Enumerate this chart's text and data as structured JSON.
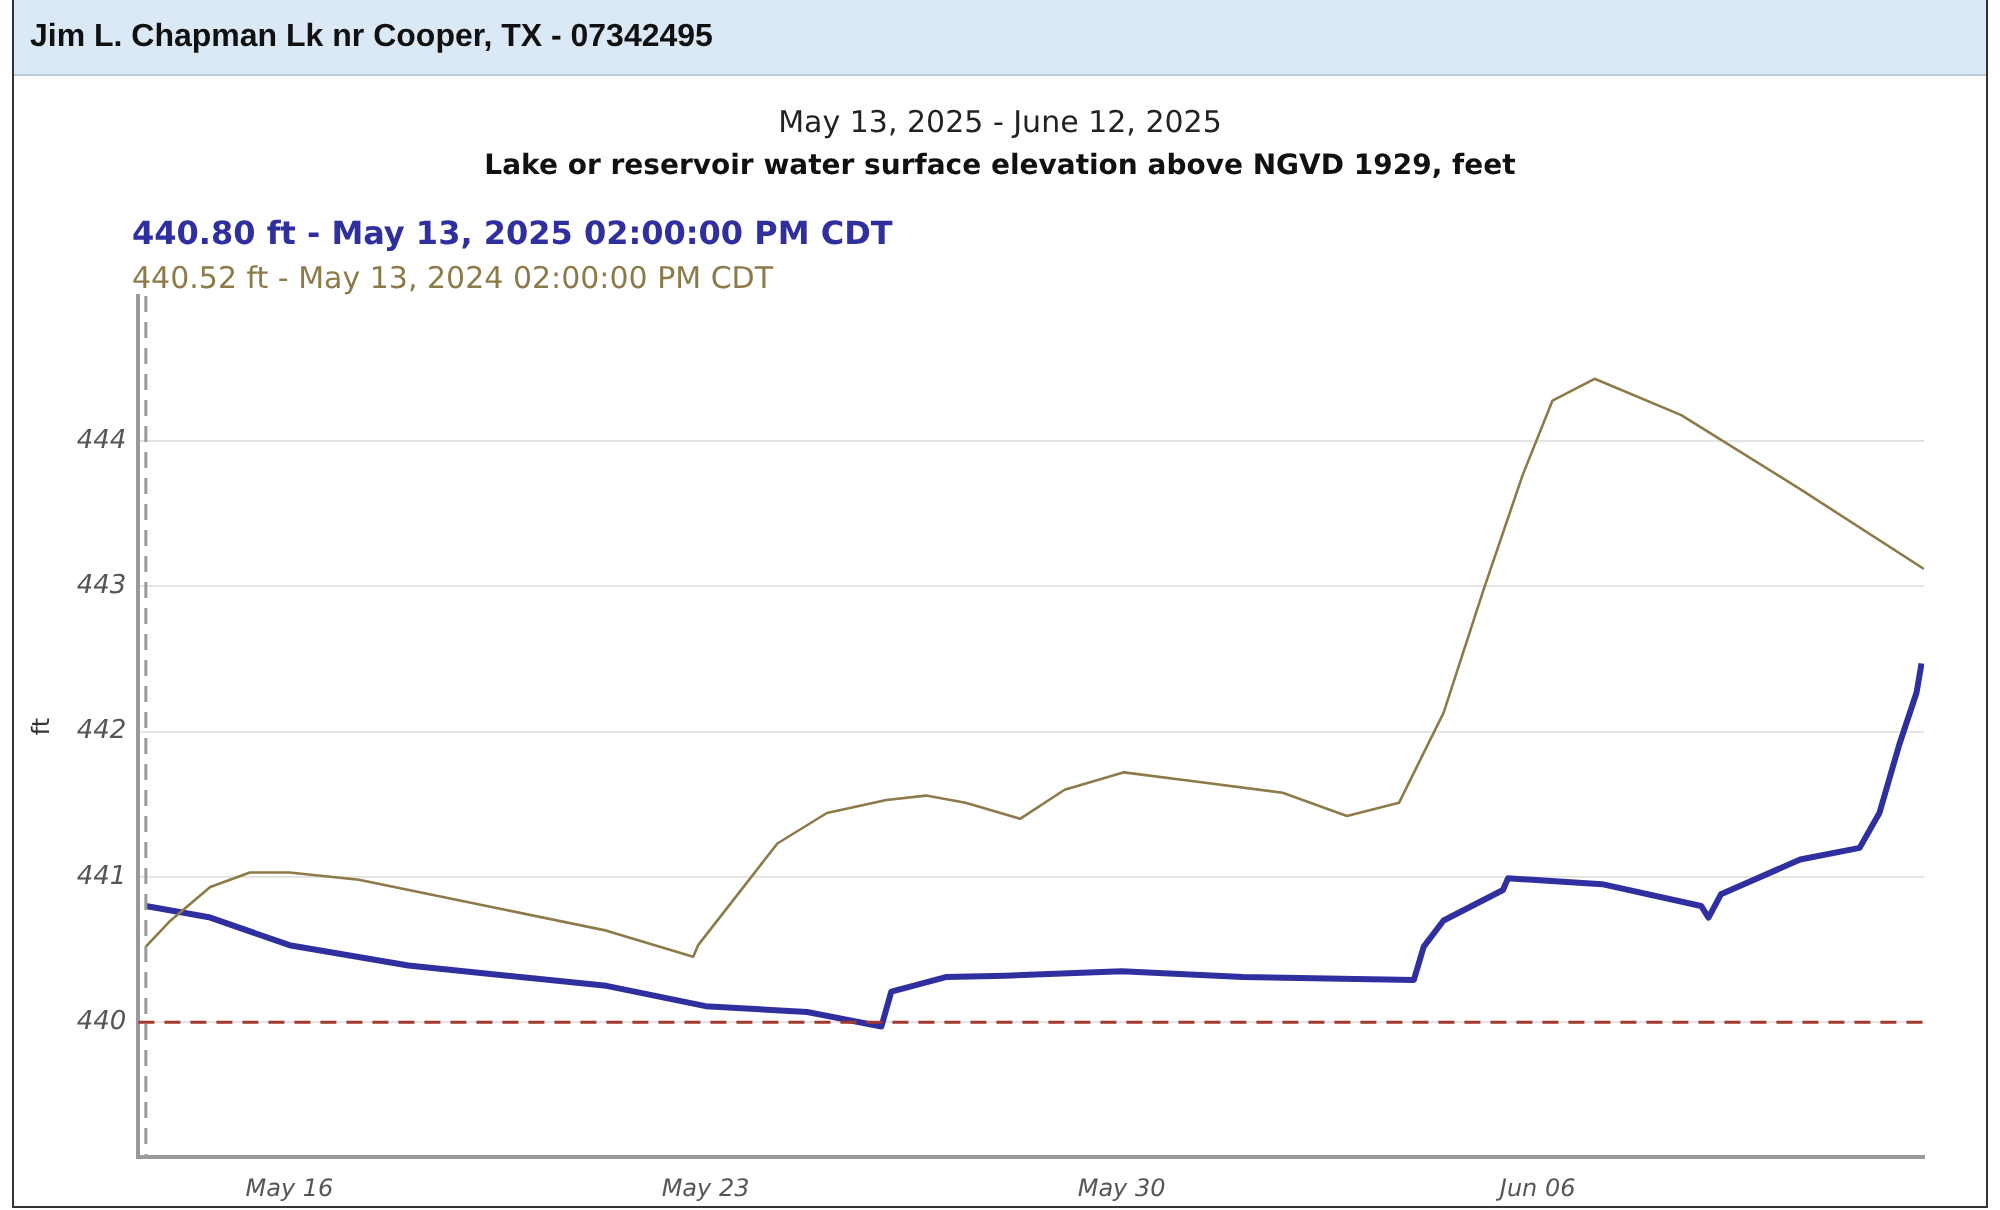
{
  "chart_data": {
    "type": "line",
    "title": "Jim L. Chapman Lk nr Cooper, TX - 07342495",
    "subtitle": "May 13, 2025 - June 12, 2025",
    "xlabel": null,
    "ylabel": "ft",
    "annotations": [
      "Lake or reservoir water surface elevation above NGVD 1929, feet"
    ],
    "xlim": [
      "2025-05-13T11:00",
      "2025-06-12T12:00"
    ],
    "xticks": [
      {
        "value": "2025-05-16",
        "label": "May 16"
      },
      {
        "value": "2025-05-23",
        "label": "May 23"
      },
      {
        "value": "2025-05-30",
        "label": "May 30"
      },
      {
        "value": "2025-06-06",
        "label": "Jun 06"
      }
    ],
    "ylim": [
      439.07,
      445
    ],
    "yticks": [
      440,
      441,
      442,
      443,
      444
    ],
    "grid": "y",
    "legend": "top left",
    "marker": "none",
    "line_style": "solid",
    "ref_lines": [
      {
        "axis": "y",
        "value": 440,
        "label": null,
        "color": "#a0392e",
        "line_style": "dashed"
      },
      {
        "axis": "x",
        "value": "2025-05-13T14:00",
        "label": null,
        "color": "#9a9a9a",
        "line_style": "dashed"
      }
    ],
    "series": [
      {
        "name": "440.80 ft - May 13, 2025 02:00:00 PM CDT",
        "color": "#2f2f9f",
        "x": [
          "2025-05-13T14:00",
          "2025-05-14T16:00",
          "2025-05-16T00:00",
          "2025-05-18T00:00",
          "2025-05-19T16:00",
          "2025-05-21T08:00",
          "2025-05-23T00:00",
          "2025-05-24T17:00",
          "2025-05-25T23:00",
          "2025-05-26T03:00",
          "2025-05-27T01:00",
          "2025-05-28T01:00",
          "2025-05-30T00:00",
          "2025-06-01T01:00",
          "2025-06-03T22:00",
          "2025-06-04T02:00",
          "2025-06-04T10:00",
          "2025-06-05T10:00",
          "2025-06-05T12:00",
          "2025-06-07T02:00",
          "2025-06-08T18:00",
          "2025-06-08T21:00",
          "2025-06-09T02:00",
          "2025-06-10T10:00",
          "2025-06-11T10:00",
          "2025-06-11T18:00",
          "2025-06-12T02:00",
          "2025-06-12T09:00",
          "2025-06-12T11:00"
        ],
        "values": [
          440.8,
          440.72,
          440.53,
          440.39,
          440.32,
          440.25,
          440.11,
          440.07,
          439.97,
          440.21,
          440.31,
          440.32,
          440.35,
          440.31,
          440.29,
          440.52,
          440.7,
          440.91,
          440.99,
          440.95,
          440.8,
          440.72,
          440.88,
          441.12,
          441.2,
          441.44,
          441.91,
          442.27,
          442.47
        ]
      },
      {
        "name": "440.52 ft - May 13, 2024 02:00:00 PM CDT",
        "color": "#8c7b48",
        "x": [
          "2025-05-13T14:00",
          "2025-05-14T00:00",
          "2025-05-14T16:00",
          "2025-05-15T08:00",
          "2025-05-16T00:00",
          "2025-05-17T04:00",
          "2025-05-19T16:00",
          "2025-05-21T08:00",
          "2025-05-22T19:00",
          "2025-05-22T21:00",
          "2025-05-23T13:00",
          "2025-05-24T05:00",
          "2025-05-25T01:00",
          "2025-05-26T01:00",
          "2025-05-26T17:00",
          "2025-05-27T09:00",
          "2025-05-28T07:00",
          "2025-05-29T01:00",
          "2025-05-30T01:00",
          "2025-05-31T09:00",
          "2025-06-01T17:00",
          "2025-06-02T19:00",
          "2025-06-03T16:00",
          "2025-06-04T10:00",
          "2025-06-05T02:00",
          "2025-06-05T18:00",
          "2025-06-06T06:00",
          "2025-06-06T23:00",
          "2025-06-08T10:00",
          "2025-06-10T10:00",
          "2025-06-12T12:00"
        ],
        "values": [
          440.52,
          440.7,
          440.93,
          441.03,
          441.03,
          440.98,
          440.77,
          440.63,
          440.45,
          440.53,
          440.88,
          441.23,
          441.44,
          441.53,
          441.56,
          441.51,
          441.4,
          441.6,
          441.72,
          441.65,
          441.58,
          441.42,
          441.51,
          442.13,
          442.97,
          443.77,
          444.28,
          444.43,
          444.18,
          443.67,
          443.12
        ]
      }
    ]
  }
}
